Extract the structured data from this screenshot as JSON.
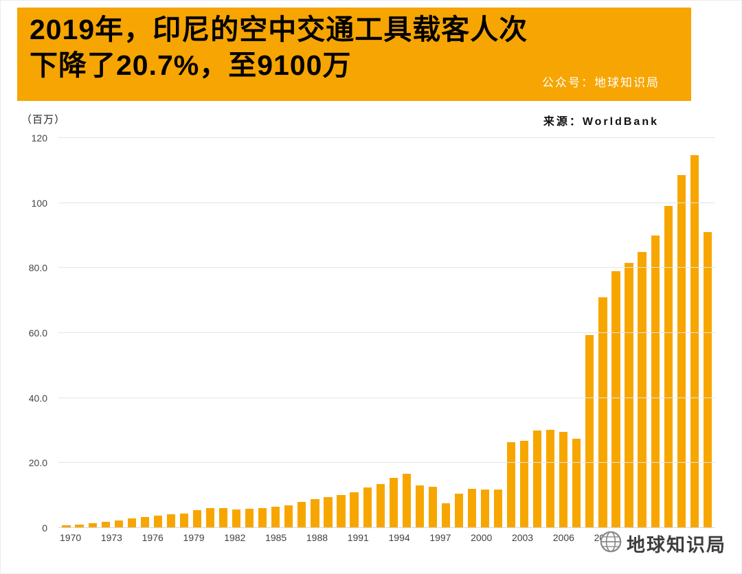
{
  "header": {
    "title_line1": "2019年，印尼的空中交通工具载客人次",
    "title_line2": "下降了20.7%，至9100万",
    "account_label": "公众号：地球知识局",
    "banner_color": "#F6A502"
  },
  "chart_meta": {
    "unit_label": "（百万）",
    "source_label": "来源：WorldBank"
  },
  "watermark": {
    "text": "地球知识局"
  },
  "chart_data": {
    "type": "bar",
    "title": "2019年，印尼的空中交通工具载客人次下降了20.7%，至9100万",
    "xlabel": "",
    "ylabel": "百万",
    "source": "WorldBank",
    "categories": [
      "1970",
      "1971",
      "1972",
      "1973",
      "1974",
      "1975",
      "1976",
      "1977",
      "1978",
      "1979",
      "1980",
      "1981",
      "1982",
      "1983",
      "1984",
      "1985",
      "1986",
      "1987",
      "1988",
      "1989",
      "1990",
      "1991",
      "1992",
      "1993",
      "1994",
      "1995",
      "1996",
      "1997",
      "1998",
      "1999",
      "2000",
      "2001",
      "2002",
      "2003",
      "2004",
      "2005",
      "2006",
      "2007",
      "2008",
      "2009",
      "2010",
      "2011",
      "2012",
      "2013",
      "2014",
      "2015",
      "2016",
      "2017",
      "2018",
      "2019"
    ],
    "values": [
      0.9,
      1.0,
      1.4,
      1.9,
      2.4,
      2.9,
      3.3,
      3.8,
      4.2,
      4.5,
      5.5,
      6.1,
      6.2,
      5.8,
      6.0,
      6.2,
      6.5,
      7.0,
      8.0,
      8.8,
      9.5,
      10.1,
      11.0,
      12.5,
      13.5,
      15.4,
      16.6,
      13.0,
      12.6,
      7.6,
      10.6,
      12.1,
      11.8,
      11.9,
      26.5,
      26.8,
      30.0,
      30.2,
      29.6,
      27.4,
      59.3,
      71.0,
      79.0,
      81.5,
      85.0,
      90.0,
      99.0,
      108.5,
      114.8,
      91.0
    ],
    "x_tick_labels": [
      "1970",
      "1973",
      "1976",
      "1979",
      "1982",
      "1985",
      "1988",
      "1991",
      "1994",
      "1997",
      "2000",
      "2003",
      "2006",
      "2009"
    ],
    "y_ticks": [
      0,
      20,
      40,
      60,
      80,
      100,
      120
    ],
    "y_tick_labels": [
      "0",
      "20.0",
      "40.0",
      "60.0",
      "80.0",
      "100",
      "120"
    ],
    "ylim": [
      0,
      120
    ],
    "grid": true,
    "legend": false,
    "bar_color": "#F7A600"
  }
}
